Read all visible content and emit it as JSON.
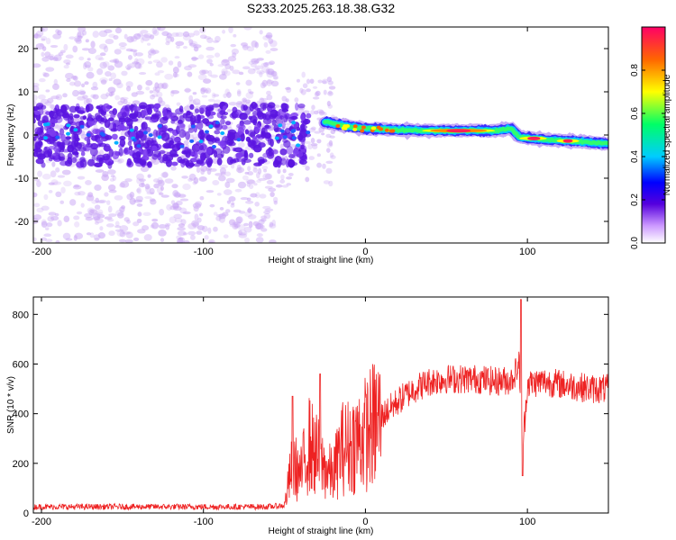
{
  "chart_data": [
    {
      "type": "heatmap",
      "title": "S233.2025.263.18.38.G32",
      "xlabel": "Height of straight line (km)",
      "ylabel": "Frequency (Hz)",
      "xlim": [
        -205,
        150
      ],
      "ylim": [
        -25,
        25
      ],
      "xticks": [
        -200,
        -100,
        0,
        100
      ],
      "xtick_labels": [
        "-200",
        "-100",
        "0",
        "100"
      ],
      "yticks": [
        -20,
        -10,
        0,
        10,
        20
      ],
      "ytick_labels": [
        "-20",
        "-10",
        "0",
        "10",
        "20"
      ],
      "colorbar": {
        "label": "Normalized spectral amplitude",
        "range": [
          0,
          1
        ],
        "ticks": [
          0.0,
          0.2,
          0.4,
          0.6,
          0.8
        ],
        "tick_labels": [
          "0.0",
          "0.2",
          "0.4",
          "0.6",
          "0.8"
        ],
        "colormap": [
          "#ffffff",
          "#cc99ff",
          "#5500dd",
          "#0000ff",
          "#00ccff",
          "#00ff66",
          "#ffff00",
          "#ff6600",
          "#ff0066"
        ]
      },
      "signal_ridge": {
        "description": "band centred near 0 Hz; noisy scatter for x < -40, coherent ridge for x > -25",
        "x": [
          -25,
          -10,
          0,
          20,
          40,
          60,
          80,
          90,
          95,
          110,
          130,
          150
        ],
        "freq": [
          3,
          2,
          1.5,
          1.2,
          1,
          1,
          1,
          1.5,
          -0.5,
          -1,
          -1.5,
          -2
        ]
      }
    },
    {
      "type": "line",
      "xlabel": "Height of straight line (km)",
      "ylabel": "SNR (10 * v/v)",
      "xlim": [
        -205,
        150
      ],
      "ylim": [
        0,
        870
      ],
      "xticks": [
        -200,
        -100,
        0,
        100
      ],
      "xtick_labels": [
        "-200",
        "-100",
        "0",
        "100"
      ],
      "yticks": [
        0,
        200,
        400,
        600,
        800
      ],
      "ytick_labels": [
        "0",
        "200",
        "400",
        "600",
        "800"
      ],
      "series": [
        {
          "name": "SNR",
          "color": "#ee2222",
          "envelope_x": [
            -205,
            -60,
            -50,
            -45,
            -40,
            -35,
            -30,
            -25,
            -20,
            -15,
            -10,
            0,
            10,
            20,
            30,
            40,
            50,
            60,
            70,
            80,
            90,
            95,
            97,
            100,
            110,
            120,
            130,
            140,
            150
          ],
          "envelope_mean": [
            25,
            25,
            30,
            200,
            150,
            280,
            230,
            180,
            150,
            260,
            270,
            320,
            390,
            450,
            500,
            530,
            540,
            540,
            540,
            530,
            535,
            600,
            250,
            520,
            530,
            520,
            510,
            500,
            500
          ],
          "spikes": [
            {
              "x": 96,
              "y": 860
            },
            {
              "x": 97,
              "y": 150
            },
            {
              "x": -28,
              "y": 560
            },
            {
              "x": -45,
              "y": 470
            }
          ]
        }
      ]
    }
  ]
}
